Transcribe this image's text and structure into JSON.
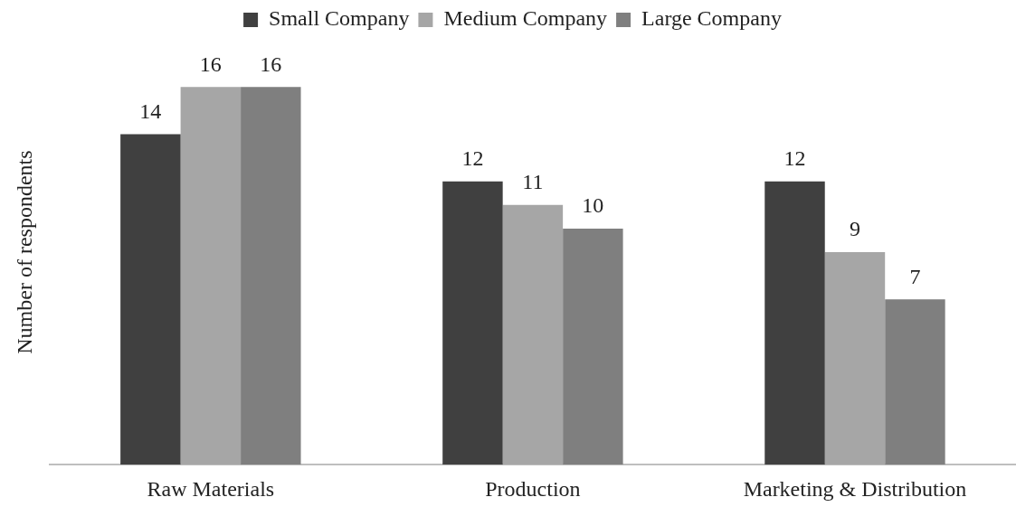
{
  "chart_data": {
    "type": "bar",
    "ylabel": "Number of respondents",
    "categories": [
      "Raw Materials",
      "Production",
      "Marketing & Distribution"
    ],
    "series": [
      {
        "name": "Small Company",
        "color": "#404040",
        "values": [
          14,
          12,
          12
        ]
      },
      {
        "name": "Medium Company",
        "color": "#a6a6a6",
        "values": [
          16,
          11,
          9
        ]
      },
      {
        "name": "Large Company",
        "color": "#7f7f7f",
        "values": [
          16,
          10,
          7
        ]
      }
    ],
    "data_labels": true,
    "legend": "top",
    "grid": false,
    "tick_labels": "x"
  }
}
